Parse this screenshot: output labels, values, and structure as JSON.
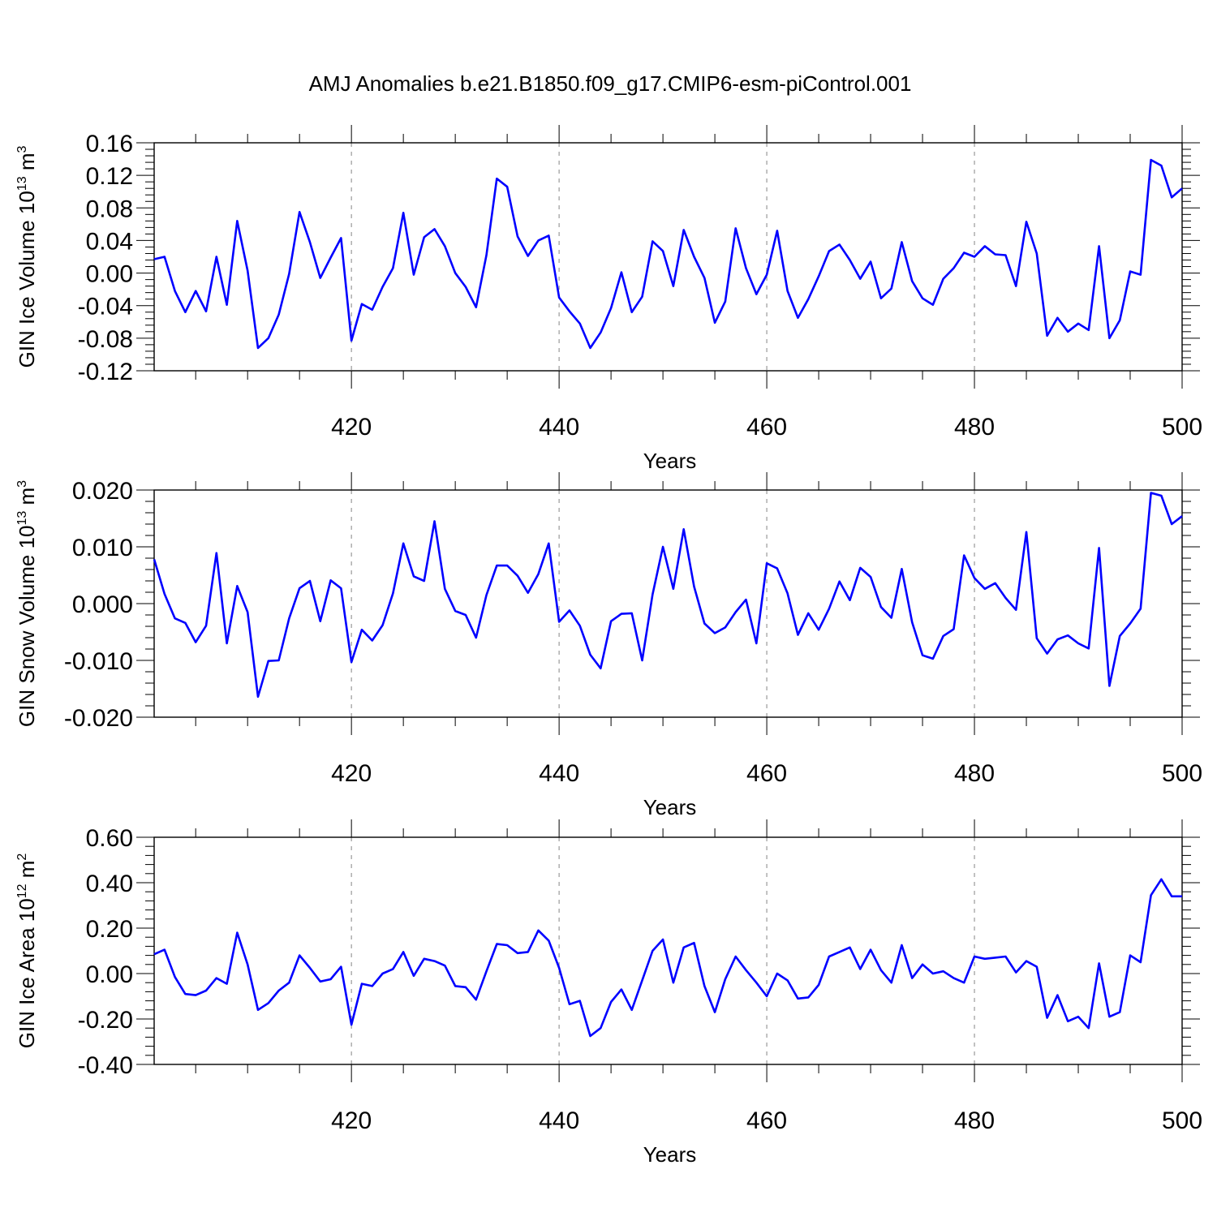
{
  "title": "AMJ Anomalies b.e21.B1850.f09_g17.CMIP6-esm-piControl.001",
  "colors": {
    "line": "#0000ff",
    "grid": "#999999",
    "axes": "#000000"
  },
  "chart_data": [
    {
      "type": "line",
      "ylabel": {
        "text": "GIN Ice Volume 10",
        "sup1": "13",
        "mid": " m",
        "sup2": "3"
      },
      "xlabel": "Years",
      "xlim": [
        401,
        500
      ],
      "ylim": [
        -0.12,
        0.16
      ],
      "yticks": [
        "-0.12",
        "-0.08",
        "-0.04",
        "0.00",
        "0.04",
        "0.08",
        "0.12",
        "0.16"
      ],
      "xticks": [
        "420",
        "440",
        "460",
        "480",
        "500"
      ],
      "grid": "vertical dashed at major x ticks",
      "series": [
        {
          "values": [
            0.017,
            0.02,
            -0.022,
            -0.048,
            -0.022,
            -0.047,
            0.02,
            -0.039,
            0.064,
            0.003,
            -0.092,
            -0.08,
            -0.051,
            -0.001,
            0.075,
            0.038,
            -0.006,
            0.019,
            0.043,
            -0.083,
            -0.038,
            -0.045,
            -0.017,
            0.006,
            0.074,
            -0.002,
            0.044,
            0.054,
            0.033,
            0.0,
            -0.017,
            -0.042,
            0.022,
            0.116,
            0.106,
            0.045,
            0.021,
            0.04,
            0.046,
            -0.03,
            -0.047,
            -0.062,
            -0.092,
            -0.073,
            -0.043,
            0.001,
            -0.048,
            -0.029,
            0.039,
            0.027,
            -0.016,
            0.053,
            0.02,
            -0.006,
            -0.061,
            -0.035,
            0.055,
            0.006,
            -0.026,
            -0.002,
            0.052,
            -0.022,
            -0.055,
            -0.032,
            -0.004,
            0.027,
            0.035,
            0.016,
            -0.007,
            0.014,
            -0.031,
            -0.019,
            0.038,
            -0.01,
            -0.031,
            -0.039,
            -0.007,
            0.006,
            0.025,
            0.02,
            0.033,
            0.023,
            0.022,
            -0.016,
            0.063,
            0.024,
            -0.077,
            -0.055,
            -0.072,
            -0.062,
            -0.07,
            0.033,
            -0.08,
            -0.058,
            0.002,
            -0.002,
            0.139,
            0.132,
            0.093,
            0.104
          ]
        }
      ]
    },
    {
      "type": "line",
      "ylabel": {
        "text": "GIN Snow Volume 10",
        "sup1": "13",
        "mid": " m",
        "sup2": "3"
      },
      "xlabel": "Years",
      "xlim": [
        401,
        500
      ],
      "ylim": [
        -0.02,
        0.02
      ],
      "yticks": [
        "-0.020",
        "-0.010",
        "0.000",
        "0.010",
        "0.020"
      ],
      "xticks": [
        "420",
        "440",
        "460",
        "480",
        "500"
      ],
      "grid": "vertical dashed at major x ticks",
      "series": [
        {
          "values": [
            0.0078,
            0.0017,
            -0.0026,
            -0.0034,
            -0.0068,
            -0.0039,
            0.0089,
            -0.007,
            0.0031,
            -0.0015,
            -0.0164,
            -0.0101,
            -0.01,
            -0.0026,
            0.0027,
            0.004,
            -0.0031,
            0.0041,
            0.0027,
            -0.0103,
            -0.0046,
            -0.0065,
            -0.0038,
            0.0018,
            0.0106,
            0.0048,
            0.004,
            0.0145,
            0.0026,
            -0.0013,
            -0.002,
            -0.006,
            0.0015,
            0.0067,
            0.0067,
            0.0049,
            0.0019,
            0.0052,
            0.0106,
            -0.0032,
            -0.0012,
            -0.0039,
            -0.009,
            -0.0114,
            -0.0031,
            -0.0018,
            -0.0017,
            -0.01,
            0.0016,
            0.01,
            0.0026,
            0.0131,
            0.003,
            -0.0035,
            -0.0052,
            -0.0042,
            -0.0015,
            0.0007,
            -0.007,
            0.0071,
            0.0062,
            0.0018,
            -0.0055,
            -0.0017,
            -0.0046,
            -0.0009,
            0.0039,
            0.0006,
            0.0063,
            0.0047,
            -0.0006,
            -0.0025,
            0.0061,
            -0.0033,
            -0.0091,
            -0.0097,
            -0.0057,
            -0.0045,
            0.0085,
            0.0045,
            0.0026,
            0.0036,
            0.001,
            -0.0011,
            0.0126,
            -0.0061,
            -0.0088,
            -0.0063,
            -0.0056,
            -0.007,
            -0.0079,
            0.0098,
            -0.0145,
            -0.0057,
            -0.0035,
            -0.0009,
            0.0195,
            0.019,
            0.014,
            0.0154
          ]
        }
      ]
    },
    {
      "type": "line",
      "ylabel": {
        "text": "GIN Ice Area 10",
        "sup1": "12",
        "mid": " m",
        "sup2": "2"
      },
      "xlabel": "Years",
      "xlim": [
        401,
        500
      ],
      "ylim": [
        -0.4,
        0.6
      ],
      "yticks": [
        "-0.40",
        "-0.20",
        "0.00",
        "0.20",
        "0.40",
        "0.60"
      ],
      "xticks": [
        "420",
        "440",
        "460",
        "480",
        "500"
      ],
      "grid": "vertical dashed at major x ticks",
      "series": [
        {
          "values": [
            0.085,
            0.105,
            -0.015,
            -0.09,
            -0.095,
            -0.075,
            -0.02,
            -0.045,
            0.18,
            0.04,
            -0.16,
            -0.13,
            -0.075,
            -0.04,
            0.08,
            0.025,
            -0.035,
            -0.025,
            0.03,
            -0.225,
            -0.045,
            -0.055,
            0.0,
            0.02,
            0.095,
            -0.01,
            0.065,
            0.055,
            0.035,
            -0.055,
            -0.06,
            -0.115,
            0.01,
            0.13,
            0.125,
            0.09,
            0.095,
            0.19,
            0.145,
            0.025,
            -0.135,
            -0.12,
            -0.275,
            -0.24,
            -0.125,
            -0.07,
            -0.16,
            -0.03,
            0.1,
            0.15,
            -0.04,
            0.115,
            0.135,
            -0.055,
            -0.17,
            -0.025,
            0.075,
            0.015,
            -0.04,
            -0.1,
            0.0,
            -0.03,
            -0.11,
            -0.105,
            -0.05,
            0.075,
            0.095,
            0.115,
            0.02,
            0.105,
            0.015,
            -0.04,
            0.125,
            -0.02,
            0.04,
            0.0,
            0.01,
            -0.02,
            -0.04,
            0.075,
            0.065,
            0.07,
            0.075,
            0.005,
            0.055,
            0.03,
            -0.195,
            -0.095,
            -0.21,
            -0.19,
            -0.24,
            0.045,
            -0.19,
            -0.17,
            0.08,
            0.05,
            0.345,
            0.415,
            0.34,
            0.34
          ]
        }
      ]
    }
  ]
}
